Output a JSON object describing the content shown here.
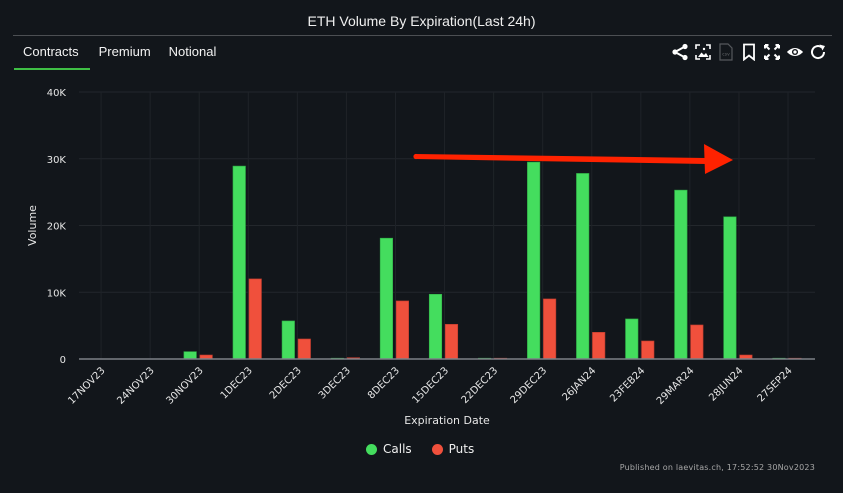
{
  "header": {
    "title": "ETH Volume By Expiration(Last 24h)"
  },
  "tabs": [
    {
      "label": "Contracts",
      "active": true
    },
    {
      "label": "Premium",
      "active": false
    },
    {
      "label": "Notional",
      "active": false
    }
  ],
  "toolbar": {
    "icons": [
      "share-icon",
      "image-download-icon",
      "csv-icon",
      "bookmark-icon",
      "fullscreen-icon",
      "eye-icon",
      "refresh-icon"
    ],
    "csv_label": "csv"
  },
  "colors": {
    "calls": "#44dd5e",
    "puts": "#f0503c",
    "arrow": "#ff2200",
    "background": "#12161b"
  },
  "chart_data": {
    "type": "bar",
    "title": "ETH Volume By Expiration(Last 24h)",
    "xlabel": "Expiration Date",
    "ylabel": "Volume",
    "ylim": [
      0,
      40000
    ],
    "yticks": [
      0,
      10000,
      20000,
      30000,
      40000
    ],
    "ytick_labels": [
      "0",
      "10K",
      "20K",
      "30K",
      "40K"
    ],
    "grid": true,
    "legend_position": "bottom-center",
    "categories": [
      "17NOV23",
      "24NOV23",
      "30NOV23",
      "1DEC23",
      "2DEC23",
      "3DEC23",
      "8DEC23",
      "15DEC23",
      "22DEC23",
      "29DEC23",
      "26JAN24",
      "23FEB24",
      "29MAR24",
      "28JUN24",
      "27SEP24"
    ],
    "series": [
      {
        "name": "Calls",
        "color": "#44dd5e",
        "values": [
          0,
          0,
          1100,
          28900,
          5700,
          100,
          18100,
          9700,
          100,
          29500,
          27800,
          6000,
          25300,
          21300,
          100
        ]
      },
      {
        "name": "Puts",
        "color": "#f0503c",
        "values": [
          0,
          0,
          600,
          12000,
          3000,
          200,
          8700,
          5200,
          100,
          9000,
          4000,
          2700,
          5100,
          600,
          100
        ]
      }
    ],
    "annotations": [
      {
        "type": "arrow",
        "color": "#ff2200",
        "direction": "right"
      }
    ]
  },
  "legend": {
    "calls": "Calls",
    "puts": "Puts"
  },
  "footer": {
    "published": "Published on laevitas.ch, 17:52:52 30Nov2023"
  }
}
